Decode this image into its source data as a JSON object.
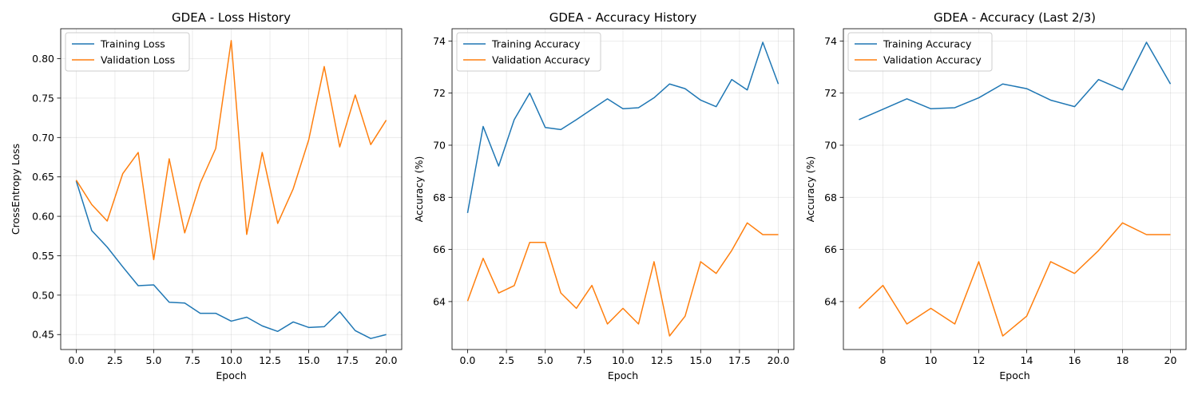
{
  "chart_data": [
    {
      "type": "line",
      "title": "GDEA - Loss History",
      "xlabel": "Epoch",
      "ylabel": "CrossEntropy Loss",
      "xlim": [
        -1,
        21
      ],
      "ylim": [
        0.431,
        0.838
      ],
      "xticks": [
        0,
        2.5,
        5,
        7.5,
        10,
        12.5,
        15,
        17.5,
        20
      ],
      "xtick_labels": [
        "0.0",
        "2.5",
        "5.0",
        "7.5",
        "10.0",
        "12.5",
        "15.0",
        "17.5",
        "20.0"
      ],
      "yticks": [
        0.45,
        0.5,
        0.55,
        0.6,
        0.65,
        0.7,
        0.75,
        0.8
      ],
      "ytick_labels": [
        "0.45",
        "0.50",
        "0.55",
        "0.60",
        "0.65",
        "0.70",
        "0.75",
        "0.80"
      ],
      "grid": true,
      "legend_position": "top-left",
      "x": [
        0,
        1,
        2,
        3,
        4,
        5,
        6,
        7,
        8,
        9,
        10,
        11,
        12,
        13,
        14,
        15,
        16,
        17,
        18,
        19,
        20
      ],
      "series": [
        {
          "name": "Training Loss",
          "color": "#1f77b4",
          "values": [
            0.645,
            0.582,
            0.561,
            0.536,
            0.512,
            0.513,
            0.491,
            0.49,
            0.477,
            0.477,
            0.467,
            0.472,
            0.461,
            0.454,
            0.466,
            0.459,
            0.46,
            0.479,
            0.455,
            0.445,
            0.45
          ]
        },
        {
          "name": "Validation Loss",
          "color": "#ff7f0e",
          "values": [
            0.646,
            0.615,
            0.594,
            0.654,
            0.681,
            0.545,
            0.673,
            0.579,
            0.642,
            0.686,
            0.823,
            0.577,
            0.681,
            0.591,
            0.635,
            0.697,
            0.79,
            0.688,
            0.754,
            0.691,
            0.722
          ]
        }
      ]
    },
    {
      "type": "line",
      "title": "GDEA - Accuracy History",
      "xlabel": "Epoch",
      "ylabel": "Accuracy (%)",
      "xlim": [
        -1,
        21
      ],
      "ylim": [
        62.16,
        74.47
      ],
      "xticks": [
        0,
        2.5,
        5,
        7.5,
        10,
        12.5,
        15,
        17.5,
        20
      ],
      "xtick_labels": [
        "0.0",
        "2.5",
        "5.0",
        "7.5",
        "10.0",
        "12.5",
        "15.0",
        "17.5",
        "20.0"
      ],
      "yticks": [
        64,
        66,
        68,
        70,
        72,
        74
      ],
      "ytick_labels": [
        "64",
        "66",
        "68",
        "70",
        "72",
        "74"
      ],
      "grid": true,
      "legend_position": "top-left",
      "x": [
        0,
        1,
        2,
        3,
        4,
        5,
        6,
        7,
        8,
        9,
        10,
        11,
        12,
        13,
        14,
        15,
        16,
        17,
        18,
        19,
        20
      ],
      "series": [
        {
          "name": "Training Accuracy",
          "color": "#1f77b4",
          "values": [
            67.4,
            70.72,
            69.2,
            70.98,
            72.0,
            70.68,
            70.6,
            70.98,
            71.38,
            71.78,
            71.4,
            71.44,
            71.82,
            72.35,
            72.17,
            71.73,
            71.48,
            72.52,
            72.12,
            73.95,
            72.35
          ]
        },
        {
          "name": "Validation Accuracy",
          "color": "#ff7f0e",
          "values": [
            64.02,
            65.66,
            64.33,
            64.61,
            66.27,
            66.27,
            64.33,
            63.74,
            64.62,
            63.14,
            63.74,
            63.14,
            65.53,
            62.68,
            63.44,
            65.53,
            65.08,
            65.96,
            67.02,
            66.57,
            66.57
          ]
        }
      ]
    },
    {
      "type": "line",
      "title": "GDEA - Accuracy (Last 2/3)",
      "xlabel": "Epoch",
      "ylabel": "Accuracy (%)",
      "xlim": [
        6.35,
        20.65
      ],
      "ylim": [
        62.16,
        74.47
      ],
      "xticks": [
        8,
        10,
        12,
        14,
        16,
        18,
        20
      ],
      "xtick_labels": [
        "8",
        "10",
        "12",
        "14",
        "16",
        "18",
        "20"
      ],
      "yticks": [
        64,
        66,
        68,
        70,
        72,
        74
      ],
      "ytick_labels": [
        "64",
        "66",
        "68",
        "70",
        "72",
        "74"
      ],
      "grid": true,
      "legend_position": "top-left",
      "x": [
        7,
        8,
        9,
        10,
        11,
        12,
        13,
        14,
        15,
        16,
        17,
        18,
        19,
        20
      ],
      "series": [
        {
          "name": "Training Accuracy",
          "color": "#1f77b4",
          "values": [
            70.98,
            71.38,
            71.78,
            71.4,
            71.44,
            71.82,
            72.35,
            72.17,
            71.73,
            71.48,
            72.52,
            72.12,
            73.95,
            72.35
          ]
        },
        {
          "name": "Validation Accuracy",
          "color": "#ff7f0e",
          "values": [
            63.74,
            64.62,
            63.14,
            63.74,
            63.14,
            65.53,
            62.68,
            63.44,
            65.53,
            65.08,
            65.96,
            67.02,
            66.57,
            66.57
          ]
        }
      ]
    }
  ]
}
